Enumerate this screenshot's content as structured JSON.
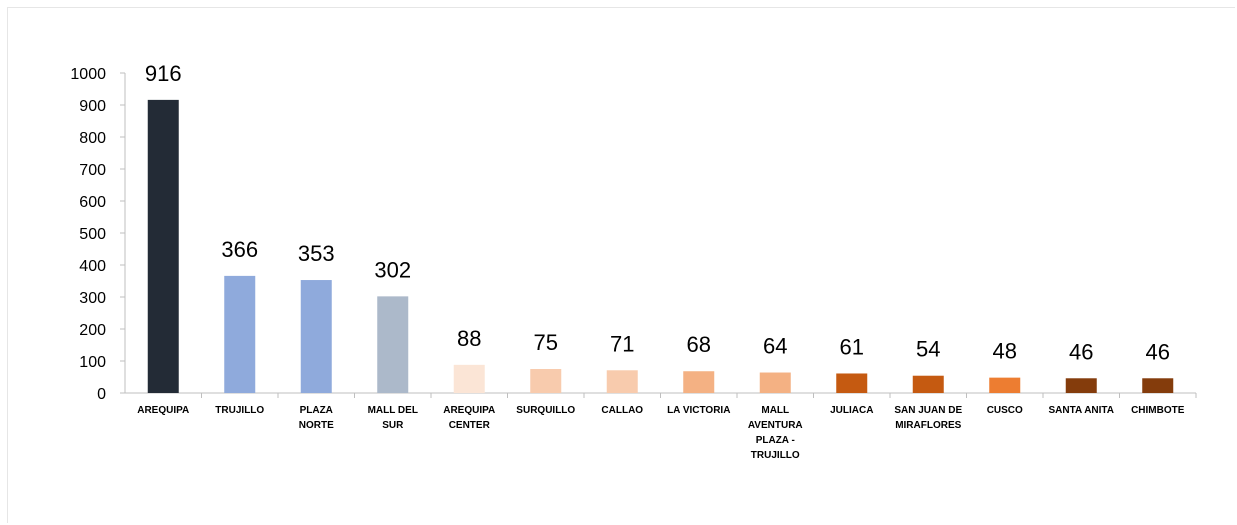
{
  "chart_data": {
    "type": "bar",
    "categories": [
      [
        "AREQUIPA"
      ],
      [
        "TRUJILLO"
      ],
      [
        "PLAZA",
        "NORTE"
      ],
      [
        "MALL DEL",
        "SUR"
      ],
      [
        "AREQUIPA",
        "CENTER"
      ],
      [
        "SURQUILLO"
      ],
      [
        "CALLAO"
      ],
      [
        "LA VICTORIA"
      ],
      [
        "MALL",
        "AVENTURA",
        "PLAZA -",
        "TRUJILLO"
      ],
      [
        "JULIACA"
      ],
      [
        "SAN JUAN DE",
        "MIRAFLORES"
      ],
      [
        "CUSCO"
      ],
      [
        "SANTA ANITA"
      ],
      [
        "CHIMBOTE"
      ]
    ],
    "values": [
      916,
      366,
      353,
      302,
      88,
      75,
      71,
      68,
      64,
      61,
      54,
      48,
      46,
      46
    ],
    "colors": [
      "#232b36",
      "#8faadc",
      "#8faadc",
      "#acb9ca",
      "#fbe5d6",
      "#f8cbad",
      "#f8cbad",
      "#f4b183",
      "#f4b183",
      "#c55a11",
      "#c55a11",
      "#ed7d31",
      "#843c0c",
      "#843c0c"
    ],
    "ylim": [
      0,
      1000
    ],
    "yticks": [
      0,
      100,
      200,
      300,
      400,
      500,
      600,
      700,
      800,
      900,
      1000
    ],
    "title": "",
    "xlabel": "",
    "ylabel": "",
    "grid": false,
    "legend": "none"
  }
}
